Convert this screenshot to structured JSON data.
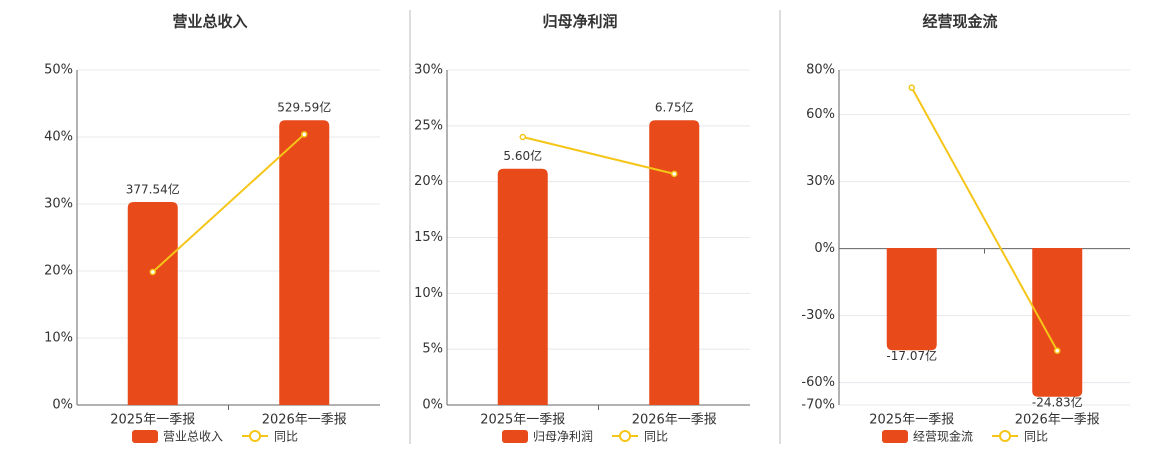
{
  "chart_data": [
    {
      "type": "bar",
      "title": "营业总收入",
      "categories": [
        "2025年一季报",
        "2026年一季报"
      ],
      "series": [
        {
          "name": "营业总收入",
          "color": "#e84a1a",
          "values": [
            377.54,
            529.59
          ],
          "value_labels": [
            "377.54亿",
            "529.59亿"
          ],
          "axis": "y2"
        },
        {
          "name": "同比",
          "color": "#f5c518",
          "type": "line",
          "values": [
            19.85,
            40.4
          ]
        }
      ],
      "ylim": [
        0,
        50
      ],
      "yticks": [
        {
          "value": 0,
          "label": "0%"
        },
        {
          "value": 10,
          "label": "10%"
        },
        {
          "value": 20,
          "label": "20%"
        },
        {
          "value": 30,
          "label": "30%"
        },
        {
          "value": 40,
          "label": "40%"
        },
        {
          "value": 50,
          "label": "50%"
        }
      ],
      "y2lim": [
        0,
        623
      ],
      "grid": true
    },
    {
      "type": "bar",
      "title": "归母净利润",
      "categories": [
        "2025年一季报",
        "2026年一季报"
      ],
      "series": [
        {
          "name": "归母净利润",
          "color": "#e84a1a",
          "values": [
            5.6,
            6.75
          ],
          "value_labels": [
            "5.60亿",
            "6.75亿"
          ],
          "axis": "y2"
        },
        {
          "name": "同比",
          "color": "#f5c518",
          "type": "line",
          "values": [
            24.0,
            20.7
          ]
        }
      ],
      "ylim": [
        0,
        30
      ],
      "yticks": [
        {
          "value": 0,
          "label": "0%"
        },
        {
          "value": 5,
          "label": "5%"
        },
        {
          "value": 10,
          "label": "10%"
        },
        {
          "value": 15,
          "label": "15%"
        },
        {
          "value": 20,
          "label": "20%"
        },
        {
          "value": 25,
          "label": "25%"
        },
        {
          "value": 30,
          "label": "30%"
        }
      ],
      "y2lim": [
        0,
        7.94
      ],
      "grid": true
    },
    {
      "type": "bar",
      "title": "经营现金流",
      "categories": [
        "2025年一季报",
        "2026年一季报"
      ],
      "series": [
        {
          "name": "经营现金流",
          "color": "#e84a1a",
          "values": [
            -17.07,
            -24.83
          ],
          "value_labels": [
            "-17.07亿",
            "-24.83亿"
          ],
          "axis": "y2"
        },
        {
          "name": "同比",
          "color": "#f5c518",
          "type": "line",
          "values": [
            72.1,
            -45.7
          ]
        }
      ],
      "ylim": [
        -70,
        80
      ],
      "yticks": [
        {
          "value": -70,
          "label": "-70%"
        },
        {
          "value": -60,
          "label": "-60%"
        },
        {
          "value": -30,
          "label": "-30%"
        },
        {
          "value": 0,
          "label": "0%"
        },
        {
          "value": 30,
          "label": "30%"
        },
        {
          "value": 60,
          "label": "60%"
        },
        {
          "value": 80,
          "label": "80%"
        }
      ],
      "y2lim": [
        -26.2,
        29.7
      ],
      "grid": true
    }
  ]
}
